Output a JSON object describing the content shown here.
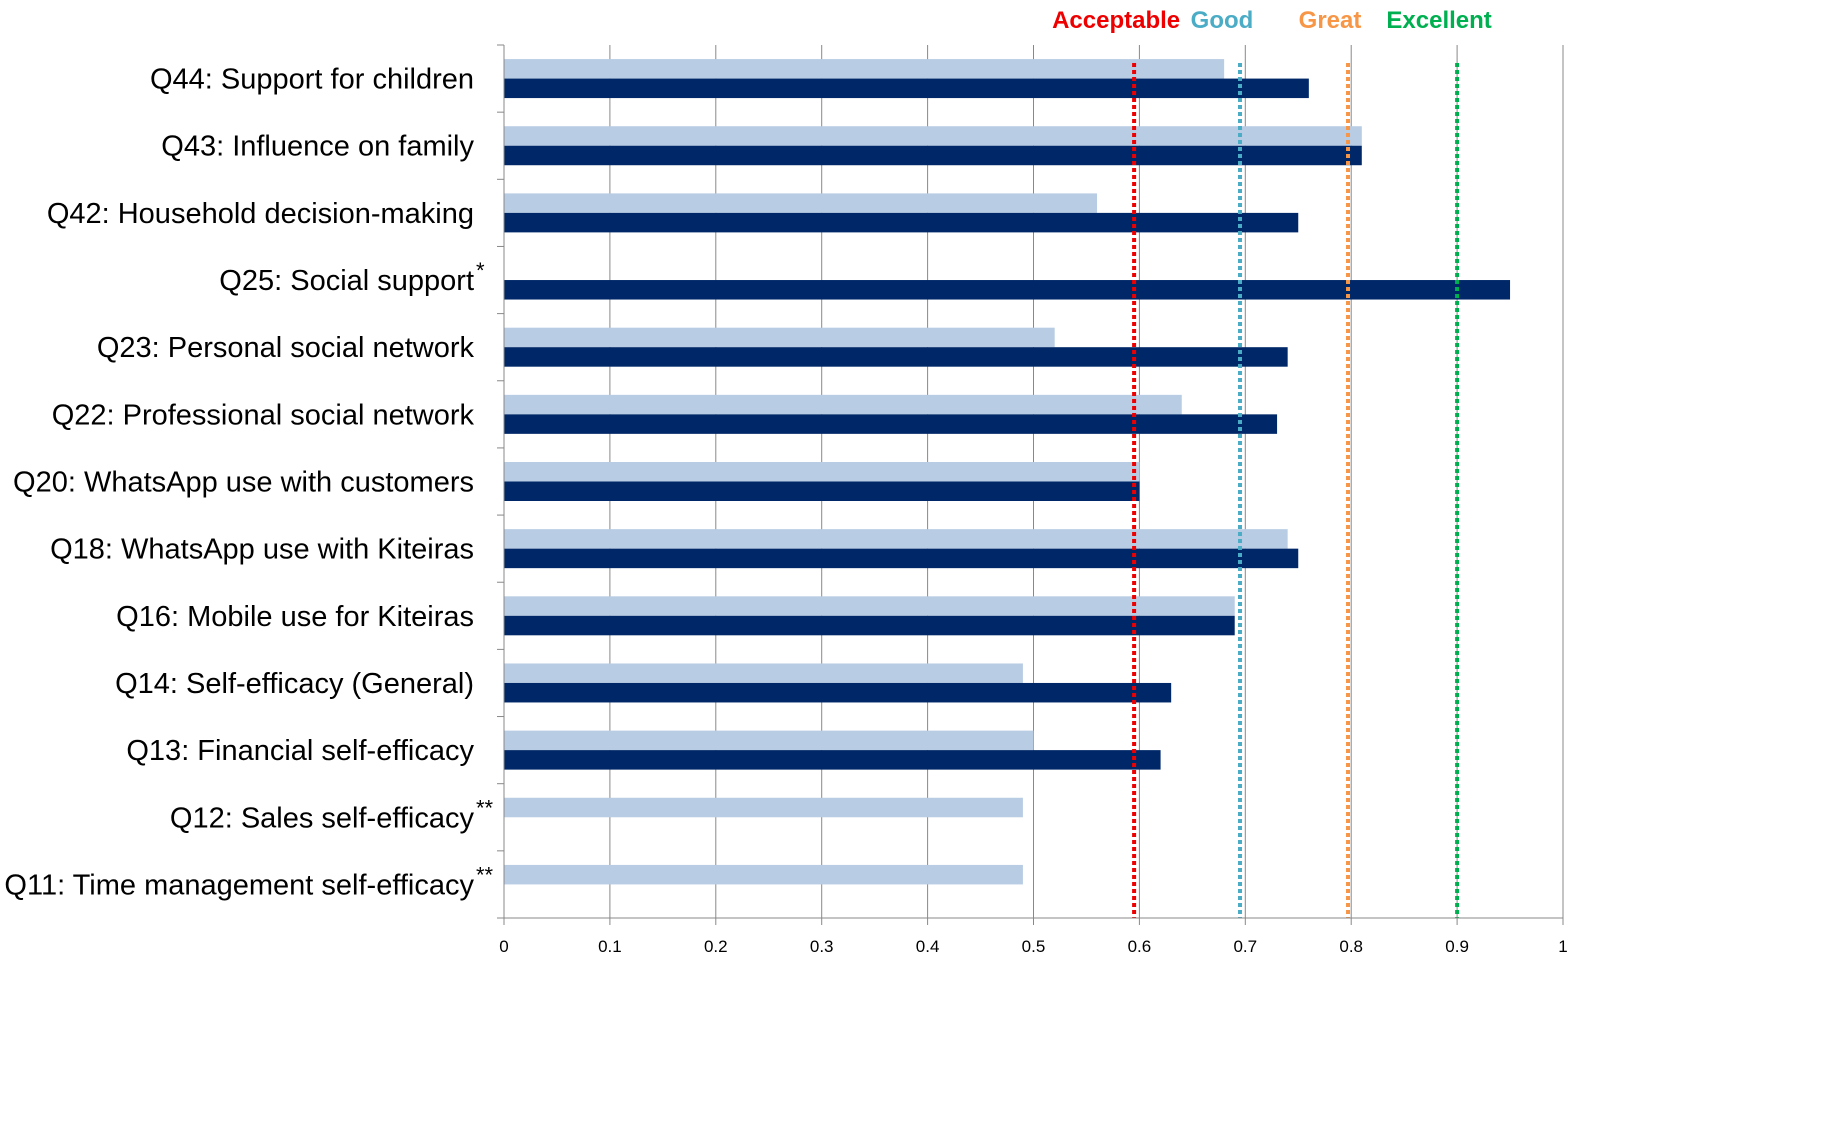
{
  "chart_data": {
    "type": "bar",
    "orientation": "horizontal",
    "title": "",
    "xlabel": "",
    "ylabel": "",
    "xlim": [
      0,
      1
    ],
    "x_ticks": [
      "0",
      "0.1",
      "0.2",
      "0.3",
      "0.4",
      "0.5",
      "0.6",
      "0.7",
      "0.8",
      "0.9",
      "1"
    ],
    "grid": "vertical",
    "legend": "none",
    "categories": [
      {
        "label": "Q44: Support for children",
        "mark": ""
      },
      {
        "label": "Q43: Influence on family",
        "mark": ""
      },
      {
        "label": "Q42: Household decision-making",
        "mark": ""
      },
      {
        "label": "Q25: Social support",
        "mark": "*"
      },
      {
        "label": "Q23: Personal social network",
        "mark": ""
      },
      {
        "label": "Q22: Professional social network",
        "mark": ""
      },
      {
        "label": "Q20: WhatsApp use with customers",
        "mark": ""
      },
      {
        "label": "Q18: WhatsApp use with Kiteiras",
        "mark": ""
      },
      {
        "label": "Q16: Mobile use for Kiteiras",
        "mark": ""
      },
      {
        "label": "Q14: Self-efficacy (General)",
        "mark": ""
      },
      {
        "label": "Q13: Financial self-efficacy",
        "mark": ""
      },
      {
        "label": "Q12: Sales self-efficacy",
        "mark": "**"
      },
      {
        "label": "Q11: Time management self-efficacy",
        "mark": "**"
      }
    ],
    "series": [
      {
        "color": "#b8cce4",
        "values": [
          0.68,
          0.81,
          0.56,
          null,
          0.52,
          0.64,
          0.6,
          0.74,
          0.69,
          0.49,
          0.5,
          0.49,
          0.49
        ]
      },
      {
        "color": "#002868",
        "values": [
          0.76,
          0.81,
          0.75,
          0.95,
          0.74,
          0.73,
          0.6,
          0.75,
          0.69,
          0.63,
          0.62,
          null,
          null
        ]
      }
    ],
    "reference_lines": [
      {
        "label": "Acceptable",
        "value": 0.595,
        "color": "#ee0000"
      },
      {
        "label": "Good",
        "value": 0.695,
        "color": "#4bacc6"
      },
      {
        "label": "Great",
        "value": 0.797,
        "color": "#f79646"
      },
      {
        "label": "Excellent",
        "value": 0.9,
        "color": "#00b050"
      }
    ]
  }
}
